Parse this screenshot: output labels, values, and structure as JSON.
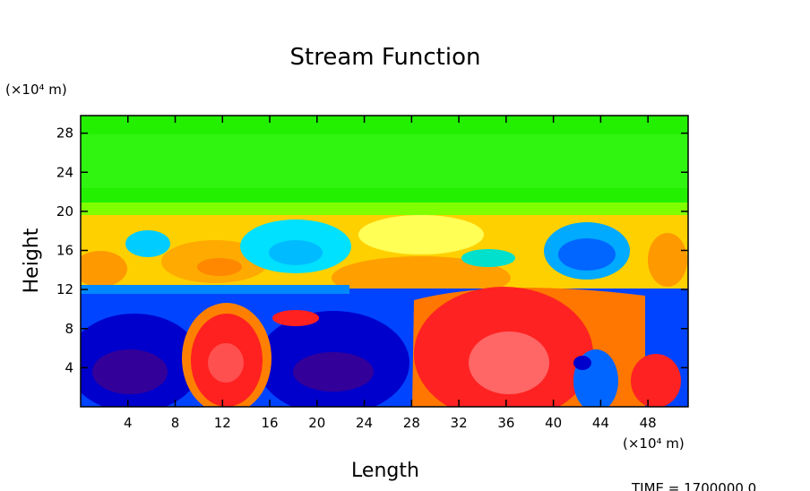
{
  "chart_data": {
    "type": "contour",
    "title": "Stream Function",
    "x_label": "Length",
    "y_label": "Height",
    "x_unit": "(×10⁴ m)",
    "y_unit": "(×10⁴ m)",
    "time_label": "TIME = 1700000.0",
    "xlim": [
      0,
      51.4
    ],
    "ylim": [
      0,
      29.8
    ],
    "xticks": [
      4,
      8,
      12,
      16,
      20,
      24,
      28,
      32,
      36,
      40,
      44,
      48
    ],
    "yticks": [
      4,
      8,
      12,
      16,
      20,
      24,
      28
    ]
  }
}
